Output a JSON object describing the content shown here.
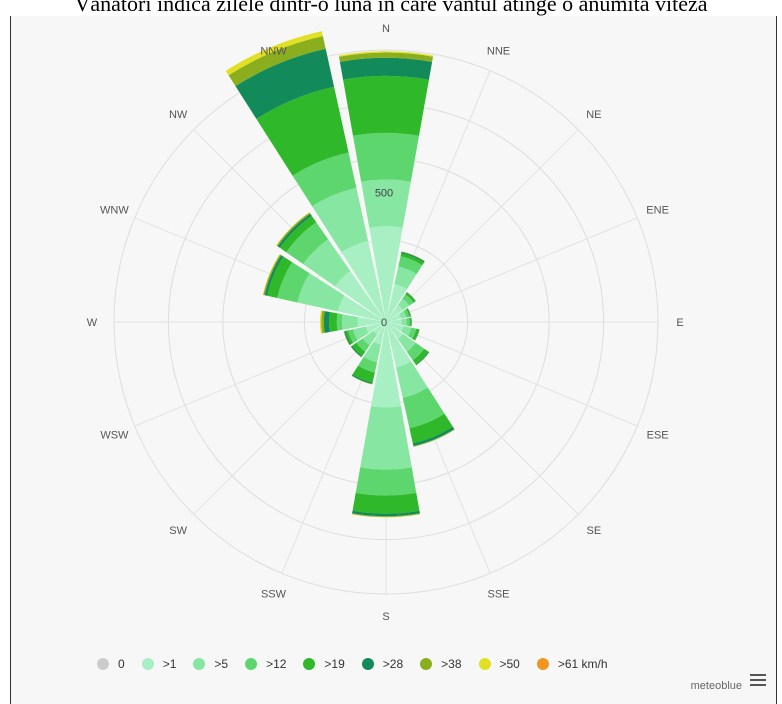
{
  "caption": "Vânători indică zilele dintr-o lună în care vântul atinge o anumită viteză",
  "chart_data": {
    "type": "polar-stacked-bar",
    "title": "",
    "directions": [
      "N",
      "NNE",
      "NE",
      "ENE",
      "E",
      "ESE",
      "SE",
      "SSE",
      "S",
      "SSW",
      "SW",
      "WSW",
      "W",
      "WNW",
      "NW",
      "NNW"
    ],
    "radial_ticks": [
      "0",
      "500"
    ],
    "radial_max": 1050,
    "legend": [
      {
        "label": "0",
        "color": "#cccccc"
      },
      {
        "label": ">1",
        "color": "#a8f0c4"
      },
      {
        "label": ">5",
        "color": "#86e6a2"
      },
      {
        "label": ">12",
        "color": "#5ed66e"
      },
      {
        "label": ">19",
        "color": "#2fb82a"
      },
      {
        "label": ">28",
        "color": "#128a5a"
      },
      {
        "label": ">38",
        "color": "#8aae1e"
      },
      {
        "label": ">50",
        "color": "#e2e024"
      },
      {
        "label": ">61 km/h",
        "color": "#f0961e"
      }
    ],
    "series": [
      {
        "name": "0",
        "values": [
          0,
          0,
          0,
          0,
          0,
          0,
          0,
          0,
          0,
          0,
          0,
          0,
          0,
          0,
          0,
          0
        ]
      },
      {
        "name": ">1",
        "values": [
          370,
          150,
          80,
          60,
          60,
          70,
          80,
          180,
          330,
          90,
          60,
          80,
          110,
          190,
          240,
          320
        ]
      },
      {
        "name": ">5",
        "values": [
          180,
          70,
          30,
          20,
          20,
          30,
          60,
          120,
          240,
          70,
          50,
          50,
          60,
          160,
          150,
          210
        ]
      },
      {
        "name": ">12",
        "values": [
          180,
          40,
          20,
          12,
          12,
          20,
          40,
          120,
          100,
          40,
          30,
          20,
          20,
          80,
          80,
          140
        ]
      },
      {
        "name": ">19",
        "values": [
          220,
          12,
          8,
          5,
          5,
          10,
          20,
          60,
          70,
          40,
          20,
          10,
          30,
          40,
          30,
          260
        ]
      },
      {
        "name": ">28",
        "values": [
          70,
          5,
          2,
          2,
          2,
          2,
          3,
          10,
          10,
          5,
          5,
          5,
          20,
          10,
          10,
          150
        ]
      },
      {
        "name": ">38",
        "values": [
          20,
          2,
          1,
          1,
          1,
          1,
          1,
          3,
          3,
          2,
          1,
          2,
          10,
          5,
          5,
          50
        ]
      },
      {
        "name": ">50",
        "values": [
          5,
          0,
          0,
          0,
          0,
          0,
          0,
          0,
          1,
          0,
          0,
          0,
          5,
          2,
          2,
          20
        ]
      },
      {
        "name": ">61 km/h",
        "values": [
          0,
          0,
          0,
          0,
          0,
          0,
          0,
          0,
          0,
          0,
          0,
          0,
          0,
          0,
          0,
          0
        ]
      }
    ]
  },
  "credit": "meteoblue",
  "icons": {
    "menu": "hamburger-menu-icon"
  }
}
